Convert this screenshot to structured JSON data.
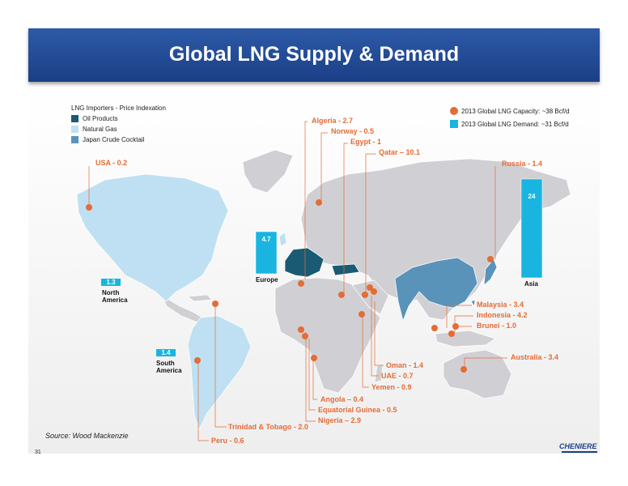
{
  "title": "Global LNG Supply & Demand",
  "legend_left": {
    "title": "LNG Importers - Price Indexation",
    "items": [
      {
        "label": "Oil Products",
        "color": "#1a5b73"
      },
      {
        "label": "Natural Gas",
        "color": "#bfe0f2"
      },
      {
        "label": "Japan Crude Cocktail",
        "color": "#5a93b9"
      }
    ]
  },
  "legend_right": {
    "capacity": "2013 Global LNG Capacity: ~38 Bcf/d",
    "demand": "2013 Global LNG Demand:  ~31 Bcf/d"
  },
  "colors": {
    "banner": "#1f4a93",
    "supply": "#e46c36",
    "demand_bar": "#19b5e0",
    "land": "#d0d0d4"
  },
  "suppliers": [
    {
      "label": "Algeria - 2.7",
      "value": 2.7
    },
    {
      "label": "Norway - 0.5",
      "value": 0.5
    },
    {
      "label": "Egypt - 1",
      "value": 1
    },
    {
      "label": "Qatar – 10.1",
      "value": 10.1
    },
    {
      "label": "Russia - 1.4",
      "value": 1.4
    },
    {
      "label": "USA - 0.2",
      "value": 0.2
    },
    {
      "label": "Malaysia - 3.4",
      "value": 3.4
    },
    {
      "label": "Indonesia - 4.2",
      "value": 4.2
    },
    {
      "label": "Brunei - 1.0",
      "value": 1.0
    },
    {
      "label": "Australia - 3.4",
      "value": 3.4
    },
    {
      "label": "Oman - 1.4",
      "value": 1.4
    },
    {
      "label": "UAE - 0.7",
      "value": 0.7
    },
    {
      "label": "Yemen - 0.9",
      "value": 0.9
    },
    {
      "label": "Angola – 0.4",
      "value": 0.4
    },
    {
      "label": "Equatorial Guinea - 0.5",
      "value": 0.5
    },
    {
      "label": "Nigeria – 2.9",
      "value": 2.9
    },
    {
      "label": "Trinidad & Tobago - 2.0",
      "value": 2.0
    },
    {
      "label": "Peru - 0.6",
      "value": 0.6
    }
  ],
  "demand": [
    {
      "region": "Europe",
      "value": "4.7"
    },
    {
      "region": "Asia",
      "value": "24"
    },
    {
      "region": "North America",
      "value": "1.3"
    },
    {
      "region": "South America",
      "value": "1.4"
    }
  ],
  "source": "Source: Wood Mackenzie",
  "page_number": "31",
  "logo": "CHENIERE"
}
